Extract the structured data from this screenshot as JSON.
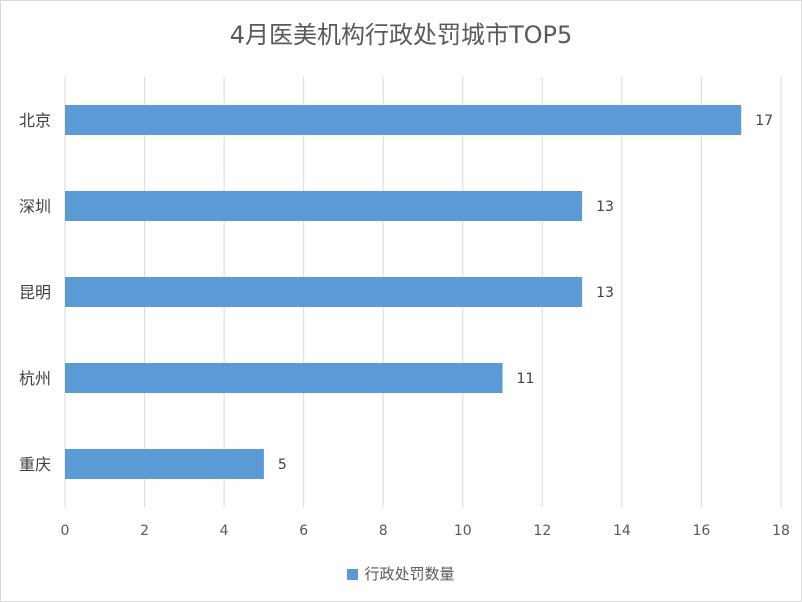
{
  "chart_data": {
    "type": "bar",
    "orientation": "horizontal",
    "title": "4月医美机构行政处罚城市TOP5",
    "categories": [
      "北京",
      "深圳",
      "昆明",
      "杭州",
      "重庆"
    ],
    "series": [
      {
        "name": "行政处罚数量",
        "values": [
          17,
          13,
          13,
          11,
          5
        ],
        "color": "#5b9bd5"
      }
    ],
    "xlim": [
      0,
      18
    ],
    "xticks": [
      0,
      2,
      4,
      6,
      8,
      10,
      12,
      14,
      16,
      18
    ],
    "grid": true,
    "legend": "bottom"
  }
}
